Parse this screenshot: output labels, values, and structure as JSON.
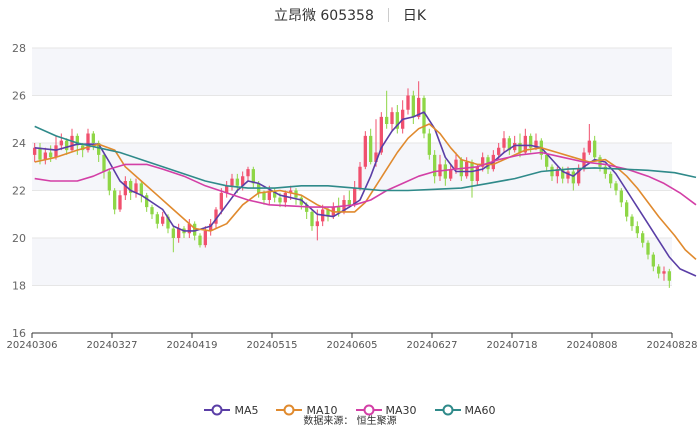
{
  "header": {
    "name": "立昂微 605358",
    "period": "日K"
  },
  "footer": {
    "source": "数据来源： 恒生聚源"
  },
  "colors": {
    "up": "#f0506e",
    "down": "#8ed646",
    "MA5": "#5a3ea6",
    "MA10": "#e08a2e",
    "MA30": "#d33fa6",
    "MA60": "#2f8a8a",
    "band": "#f5f6fa",
    "grid": "#e6e6e6"
  },
  "chart_data": {
    "type": "candlestick",
    "title": "立昂微 605358",
    "ylim": [
      16,
      28
    ],
    "yticks": [
      16,
      18,
      20,
      22,
      24,
      26,
      28
    ],
    "xticks": [
      "20240306",
      "20240327",
      "20240419",
      "20240515",
      "20240605",
      "20240627",
      "20240718",
      "20240808",
      "20240828"
    ],
    "series_names": [
      "MA5",
      "MA10",
      "MA30",
      "MA60"
    ],
    "candles": [
      [
        23.5,
        23.8,
        24.0,
        23.2
      ],
      [
        23.8,
        23.3,
        24.0,
        23.1
      ],
      [
        23.3,
        23.6,
        23.8,
        23.1
      ],
      [
        23.6,
        23.4,
        23.9,
        23.2
      ],
      [
        23.4,
        23.9,
        24.3,
        23.3
      ],
      [
        23.9,
        24.1,
        24.4,
        23.7
      ],
      [
        24.1,
        23.7,
        24.2,
        23.5
      ],
      [
        23.7,
        24.3,
        24.6,
        23.6
      ],
      [
        24.3,
        23.9,
        24.4,
        23.5
      ],
      [
        23.9,
        23.7,
        24.0,
        23.4
      ],
      [
        23.7,
        24.4,
        24.6,
        23.6
      ],
      [
        24.4,
        24.0,
        24.5,
        23.7
      ],
      [
        24.0,
        23.5,
        24.1,
        23.2
      ],
      [
        23.5,
        22.8,
        23.6,
        22.5
      ],
      [
        22.8,
        22.0,
        22.9,
        21.8
      ],
      [
        22.0,
        21.2,
        22.1,
        21.0
      ],
      [
        21.2,
        21.8,
        22.0,
        21.1
      ],
      [
        21.8,
        22.4,
        22.6,
        21.6
      ],
      [
        22.4,
        21.9,
        22.5,
        21.6
      ],
      [
        21.9,
        22.3,
        22.5,
        21.7
      ],
      [
        22.3,
        21.8,
        22.4,
        21.5
      ],
      [
        21.8,
        21.3,
        21.9,
        21.1
      ],
      [
        21.3,
        21.0,
        21.4,
        20.8
      ],
      [
        21.0,
        20.6,
        21.1,
        20.4
      ],
      [
        20.6,
        20.9,
        21.1,
        20.5
      ],
      [
        20.9,
        20.4,
        21.0,
        20.2
      ],
      [
        20.4,
        20.0,
        20.5,
        19.4
      ],
      [
        20.0,
        20.4,
        20.6,
        19.8
      ],
      [
        20.4,
        20.2,
        20.5,
        20.0
      ],
      [
        20.2,
        20.6,
        20.8,
        20.0
      ],
      [
        20.6,
        20.1,
        20.7,
        19.9
      ],
      [
        20.1,
        19.7,
        20.2,
        19.6
      ],
      [
        19.7,
        20.3,
        20.5,
        19.6
      ],
      [
        20.3,
        20.6,
        20.8,
        20.1
      ],
      [
        20.6,
        21.2,
        21.3,
        20.4
      ],
      [
        21.2,
        21.9,
        22.1,
        21.0
      ],
      [
        21.9,
        22.2,
        22.4,
        21.7
      ],
      [
        22.2,
        22.5,
        22.7,
        22.0
      ],
      [
        22.5,
        22.2,
        22.7,
        21.9
      ],
      [
        22.2,
        22.6,
        22.8,
        22.0
      ],
      [
        22.6,
        22.9,
        23.0,
        22.4
      ],
      [
        22.9,
        22.3,
        23.0,
        22.1
      ],
      [
        22.3,
        21.9,
        22.4,
        21.7
      ],
      [
        21.9,
        21.6,
        22.0,
        21.4
      ],
      [
        21.6,
        22.0,
        22.2,
        21.4
      ],
      [
        22.0,
        21.7,
        22.1,
        21.5
      ],
      [
        21.7,
        21.5,
        21.9,
        21.3
      ],
      [
        21.5,
        21.9,
        22.0,
        21.3
      ],
      [
        21.9,
        22.0,
        22.2,
        21.6
      ],
      [
        22.0,
        21.7,
        22.1,
        21.4
      ],
      [
        21.7,
        21.4,
        21.8,
        21.2
      ],
      [
        21.4,
        21.1,
        21.5,
        20.8
      ],
      [
        21.1,
        20.5,
        21.2,
        20.3
      ],
      [
        20.5,
        20.7,
        21.2,
        19.9
      ],
      [
        20.7,
        21.2,
        21.4,
        20.5
      ],
      [
        21.2,
        20.9,
        21.3,
        20.7
      ],
      [
        20.9,
        21.3,
        21.5,
        20.8
      ],
      [
        21.3,
        21.1,
        21.7,
        20.9
      ],
      [
        21.1,
        21.6,
        21.8,
        21.0
      ],
      [
        21.6,
        21.4,
        22.0,
        21.3
      ],
      [
        21.4,
        22.1,
        22.4,
        21.3
      ],
      [
        22.1,
        23.0,
        23.2,
        22.0
      ],
      [
        23.0,
        24.3,
        24.5,
        22.9
      ],
      [
        24.3,
        23.2,
        24.6,
        23.1
      ],
      [
        23.2,
        23.6,
        25.0,
        23.0
      ],
      [
        23.6,
        25.1,
        25.3,
        23.5
      ],
      [
        25.1,
        24.8,
        26.2,
        24.6
      ],
      [
        24.8,
        25.3,
        25.5,
        24.5
      ],
      [
        25.3,
        24.6,
        25.6,
        24.4
      ],
      [
        24.6,
        25.4,
        25.8,
        24.4
      ],
      [
        25.4,
        26.0,
        26.3,
        25.2
      ],
      [
        26.0,
        25.1,
        26.2,
        24.8
      ],
      [
        25.1,
        25.9,
        26.6,
        25.0
      ],
      [
        25.9,
        24.4,
        26.0,
        24.2
      ],
      [
        24.4,
        23.5,
        24.6,
        23.3
      ],
      [
        23.5,
        22.6,
        23.7,
        22.3
      ],
      [
        22.6,
        23.1,
        23.5,
        22.4
      ],
      [
        23.1,
        22.5,
        23.3,
        22.2
      ],
      [
        22.5,
        22.9,
        23.1,
        22.4
      ],
      [
        22.9,
        23.3,
        23.6,
        22.7
      ],
      [
        23.3,
        22.6,
        23.4,
        22.4
      ],
      [
        22.6,
        23.2,
        23.4,
        22.5
      ],
      [
        23.2,
        22.4,
        23.3,
        21.7
      ],
      [
        22.4,
        23.0,
        23.1,
        22.2
      ],
      [
        23.0,
        23.4,
        23.6,
        22.8
      ],
      [
        23.4,
        22.9,
        23.5,
        22.7
      ],
      [
        22.9,
        23.5,
        23.7,
        22.8
      ],
      [
        23.5,
        23.8,
        24.0,
        23.3
      ],
      [
        23.8,
        24.2,
        24.5,
        23.6
      ],
      [
        24.2,
        23.7,
        24.3,
        23.5
      ],
      [
        23.7,
        24.0,
        24.3,
        23.6
      ],
      [
        24.0,
        23.6,
        24.4,
        23.4
      ],
      [
        23.6,
        24.3,
        24.6,
        23.5
      ],
      [
        24.3,
        23.8,
        24.4,
        23.6
      ],
      [
        23.8,
        24.1,
        24.4,
        23.7
      ],
      [
        24.1,
        23.5,
        24.2,
        23.3
      ],
      [
        23.5,
        23.0,
        23.6,
        22.8
      ],
      [
        23.0,
        22.6,
        23.1,
        22.4
      ],
      [
        22.6,
        22.9,
        23.0,
        22.3
      ],
      [
        22.9,
        22.5,
        23.0,
        22.3
      ],
      [
        22.5,
        22.8,
        23.0,
        22.3
      ],
      [
        22.8,
        22.3,
        22.9,
        22.0
      ],
      [
        22.3,
        22.9,
        23.1,
        22.2
      ],
      [
        22.9,
        23.6,
        23.8,
        22.8
      ],
      [
        23.6,
        24.1,
        24.8,
        23.5
      ],
      [
        24.1,
        23.4,
        24.3,
        23.2
      ],
      [
        23.4,
        23.0,
        23.5,
        22.8
      ],
      [
        23.0,
        22.7,
        23.1,
        22.5
      ],
      [
        22.7,
        22.3,
        22.8,
        22.1
      ],
      [
        22.3,
        22.0,
        22.4,
        21.8
      ],
      [
        22.0,
        21.5,
        22.1,
        21.3
      ],
      [
        21.5,
        20.9,
        21.6,
        20.7
      ],
      [
        20.9,
        20.5,
        21.0,
        20.3
      ],
      [
        20.5,
        20.2,
        20.7,
        20.0
      ],
      [
        20.2,
        19.8,
        20.3,
        19.6
      ],
      [
        19.8,
        19.3,
        19.9,
        19.1
      ],
      [
        19.3,
        18.8,
        19.4,
        18.6
      ],
      [
        18.8,
        18.5,
        18.9,
        18.3
      ],
      [
        18.5,
        18.6,
        18.8,
        18.2
      ],
      [
        18.6,
        18.2,
        18.7,
        17.9
      ]
    ],
    "ma": {
      "MA5": [
        [
          0,
          23.8
        ],
        [
          4,
          23.7
        ],
        [
          8,
          23.95
        ],
        [
          12,
          23.95
        ],
        [
          14,
          23.2
        ],
        [
          16,
          22.4
        ],
        [
          18,
          22.0
        ],
        [
          20,
          21.8
        ],
        [
          24,
          21.2
        ],
        [
          26,
          20.5
        ],
        [
          28,
          20.3
        ],
        [
          30,
          20.3
        ],
        [
          33,
          20.5
        ],
        [
          36,
          21.4
        ],
        [
          38,
          22.0
        ],
        [
          40,
          22.4
        ],
        [
          42,
          22.3
        ],
        [
          46,
          21.8
        ],
        [
          50,
          21.6
        ],
        [
          53,
          21.0
        ],
        [
          56,
          20.9
        ],
        [
          59,
          21.3
        ],
        [
          61,
          21.6
        ],
        [
          63,
          22.6
        ],
        [
          65,
          23.8
        ],
        [
          67,
          24.5
        ],
        [
          69,
          25.0
        ],
        [
          71,
          25.1
        ],
        [
          73,
          25.3
        ],
        [
          75,
          24.6
        ],
        [
          77,
          23.4
        ],
        [
          79,
          22.8
        ],
        [
          82,
          22.8
        ],
        [
          84,
          22.9
        ],
        [
          86,
          23.2
        ],
        [
          88,
          23.6
        ],
        [
          90,
          23.9
        ],
        [
          93,
          23.9
        ],
        [
          95,
          23.8
        ],
        [
          97,
          23.3
        ],
        [
          99,
          22.8
        ],
        [
          101,
          22.6
        ],
        [
          103,
          23.0
        ],
        [
          105,
          23.3
        ],
        [
          107,
          23.2
        ],
        [
          109,
          22.7
        ],
        [
          111,
          22.0
        ],
        [
          113,
          21.3
        ],
        [
          115,
          20.6
        ],
        [
          117,
          19.9
        ],
        [
          119,
          19.2
        ],
        [
          121,
          18.7
        ],
        [
          124,
          18.4
        ]
      ],
      "MA10": [
        [
          0,
          23.2
        ],
        [
          4,
          23.4
        ],
        [
          8,
          23.7
        ],
        [
          12,
          23.95
        ],
        [
          15,
          23.7
        ],
        [
          17,
          23.0
        ],
        [
          20,
          22.4
        ],
        [
          23,
          21.8
        ],
        [
          26,
          21.2
        ],
        [
          28,
          20.8
        ],
        [
          30,
          20.4
        ],
        [
          33,
          20.3
        ],
        [
          36,
          20.6
        ],
        [
          39,
          21.4
        ],
        [
          42,
          21.9
        ],
        [
          46,
          22.0
        ],
        [
          50,
          21.8
        ],
        [
          53,
          21.4
        ],
        [
          56,
          21.1
        ],
        [
          60,
          21.1
        ],
        [
          62,
          21.5
        ],
        [
          64,
          22.2
        ],
        [
          66,
          22.9
        ],
        [
          68,
          23.6
        ],
        [
          70,
          24.2
        ],
        [
          72,
          24.6
        ],
        [
          74,
          24.8
        ],
        [
          76,
          24.4
        ],
        [
          78,
          23.8
        ],
        [
          80,
          23.3
        ],
        [
          83,
          23.1
        ],
        [
          86,
          23.1
        ],
        [
          89,
          23.4
        ],
        [
          92,
          23.7
        ],
        [
          95,
          23.8
        ],
        [
          98,
          23.6
        ],
        [
          101,
          23.4
        ],
        [
          104,
          23.2
        ],
        [
          107,
          23.3
        ],
        [
          109,
          23.0
        ],
        [
          111,
          22.6
        ],
        [
          113,
          22.1
        ],
        [
          115,
          21.5
        ],
        [
          117,
          20.9
        ],
        [
          120,
          20.1
        ],
        [
          122,
          19.5
        ],
        [
          124,
          19.1
        ]
      ],
      "MA30": [
        [
          0,
          22.5
        ],
        [
          3,
          22.4
        ],
        [
          8,
          22.4
        ],
        [
          11,
          22.6
        ],
        [
          14,
          22.9
        ],
        [
          17,
          23.1
        ],
        [
          21,
          23.1
        ],
        [
          24,
          22.9
        ],
        [
          28,
          22.6
        ],
        [
          32,
          22.2
        ],
        [
          36,
          21.9
        ],
        [
          40,
          21.6
        ],
        [
          44,
          21.4
        ],
        [
          48,
          21.35
        ],
        [
          52,
          21.3
        ],
        [
          56,
          21.3
        ],
        [
          60,
          21.4
        ],
        [
          63,
          21.6
        ],
        [
          66,
          22.0
        ],
        [
          69,
          22.3
        ],
        [
          72,
          22.6
        ],
        [
          75,
          22.8
        ],
        [
          79,
          22.9
        ],
        [
          83,
          23.0
        ],
        [
          87,
          23.3
        ],
        [
          91,
          23.5
        ],
        [
          95,
          23.6
        ],
        [
          99,
          23.4
        ],
        [
          103,
          23.2
        ],
        [
          107,
          23.1
        ],
        [
          111,
          22.9
        ],
        [
          115,
          22.6
        ],
        [
          118,
          22.3
        ],
        [
          121,
          21.9
        ],
        [
          124,
          21.4
        ]
      ],
      "MA60": [
        [
          0,
          24.7
        ],
        [
          4,
          24.3
        ],
        [
          8,
          24.0
        ],
        [
          12,
          23.8
        ],
        [
          16,
          23.6
        ],
        [
          20,
          23.3
        ],
        [
          24,
          23.0
        ],
        [
          28,
          22.7
        ],
        [
          32,
          22.4
        ],
        [
          36,
          22.2
        ],
        [
          40,
          22.1
        ],
        [
          45,
          22.1
        ],
        [
          50,
          22.2
        ],
        [
          55,
          22.2
        ],
        [
          60,
          22.1
        ],
        [
          65,
          22.0
        ],
        [
          70,
          22.0
        ],
        [
          75,
          22.05
        ],
        [
          80,
          22.1
        ],
        [
          85,
          22.3
        ],
        [
          90,
          22.5
        ],
        [
          95,
          22.8
        ],
        [
          100,
          22.9
        ],
        [
          105,
          22.95
        ],
        [
          110,
          22.9
        ],
        [
          115,
          22.85
        ],
        [
          120,
          22.75
        ],
        [
          124,
          22.55
        ]
      ]
    }
  }
}
